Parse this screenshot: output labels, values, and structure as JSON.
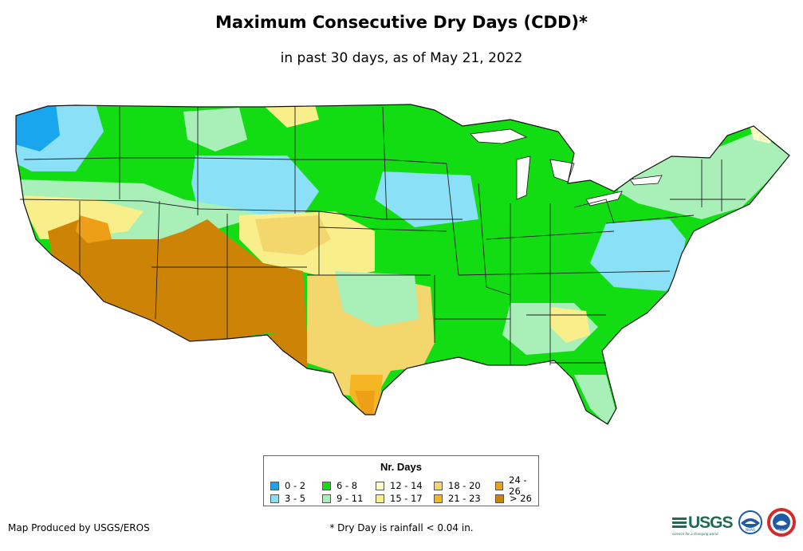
{
  "title": "Maximum Consecutive Dry Days (CDD)*",
  "subtitle": "in past 30 days, as of May 21, 2022",
  "legend": {
    "title": "Nr. Days",
    "items": [
      {
        "label": "0 - 2",
        "color": "#1aa6ee"
      },
      {
        "label": "3 - 5",
        "color": "#8ae0f6"
      },
      {
        "label": "6 - 8",
        "color": "#12dd12"
      },
      {
        "label": "9 - 11",
        "color": "#a8f0b8"
      },
      {
        "label": "12 - 14",
        "color": "#fbf9c6"
      },
      {
        "label": "15 - 17",
        "color": "#f9ef8a"
      },
      {
        "label": "18 - 20",
        "color": "#f3d66c"
      },
      {
        "label": "21 - 23",
        "color": "#f5b623"
      },
      {
        "label": "24 - 26",
        "color": "#ed9f18"
      },
      {
        "label": "> 26",
        "color": "#cd8406"
      }
    ]
  },
  "credit": "Map Produced by USGS/EROS",
  "footnote": "* Dry Day is rainfall < 0.04 in.",
  "logos": {
    "usgs": "USGS",
    "usgs_tagline": "science for a changing world",
    "noaa": "NOAA",
    "nws": "NWS"
  },
  "colors": {
    "outline": "#111111",
    "state_border": "#222222",
    "logo_green": "#1e6b52",
    "noaa_blue": "#1f5aa6",
    "nws_red": "#d42a2a"
  }
}
